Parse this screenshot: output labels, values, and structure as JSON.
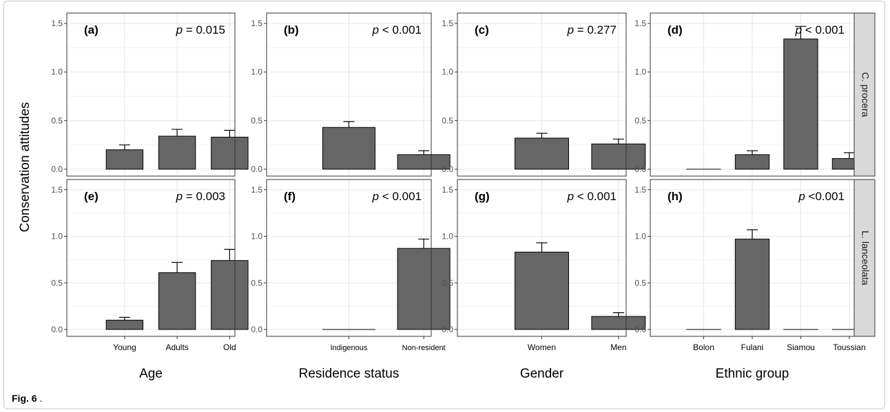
{
  "figure_caption": {
    "label": "Fig. 6",
    "text": "."
  },
  "y_axis_title": "Conservation attitudes",
  "columns": [
    {
      "x_title": "Age",
      "categories": [
        "Young",
        "Adults",
        "Old"
      ]
    },
    {
      "x_title": "Residence status",
      "categories": [
        "Indigenous",
        "Non-resident"
      ]
    },
    {
      "x_title": "Gender",
      "categories": [
        "Women",
        "Men"
      ]
    },
    {
      "x_title": "Ethnic group",
      "categories": [
        "Bolon",
        "Fulani",
        "Siamou",
        "Toussian"
      ]
    }
  ],
  "rows": [
    {
      "strip_label": "C. procera"
    },
    {
      "strip_label": "L. lanceolata"
    }
  ],
  "chart_data": [
    {
      "type": "bar",
      "panel": "(a)",
      "species": "C. procera",
      "xlabel": "Age",
      "ylabel": "Conservation attitudes",
      "categories": [
        "Young",
        "Adults",
        "Old"
      ],
      "values": [
        0.2,
        0.34,
        0.33
      ],
      "errors": [
        0.05,
        0.07,
        0.07
      ],
      "p_value": "= 0.015",
      "ylim": [
        0,
        1.55
      ],
      "yticks": [
        0.0,
        0.5,
        1.0,
        1.5
      ],
      "grid": true
    },
    {
      "type": "bar",
      "panel": "(b)",
      "species": "C. procera",
      "xlabel": "Residence status",
      "categories": [
        "Indigenous",
        "Non-resident"
      ],
      "values": [
        0.43,
        0.15
      ],
      "errors": [
        0.06,
        0.04
      ],
      "p_value": "< 0.001",
      "ylim": [
        0,
        1.55
      ],
      "yticks": [
        0.0,
        0.5,
        1.0,
        1.5
      ],
      "grid": true
    },
    {
      "type": "bar",
      "panel": "(c)",
      "species": "C. procera",
      "xlabel": "Gender",
      "categories": [
        "Women",
        "Men"
      ],
      "values": [
        0.32,
        0.26
      ],
      "errors": [
        0.05,
        0.05
      ],
      "p_value": "= 0.277",
      "ylim": [
        0,
        1.55
      ],
      "yticks": [
        0.0,
        0.5,
        1.0,
        1.5
      ],
      "grid": true
    },
    {
      "type": "bar",
      "panel": "(d)",
      "species": "C. procera",
      "xlabel": "Ethnic group",
      "categories": [
        "Bolon",
        "Fulani",
        "Siamou",
        "Toussian"
      ],
      "values": [
        0.0,
        0.15,
        1.34,
        0.11
      ],
      "errors": [
        0.0,
        0.04,
        0.13,
        0.06
      ],
      "p_value": "< 0.001",
      "ylim": [
        0,
        1.55
      ],
      "yticks": [
        0.0,
        0.5,
        1.0,
        1.5
      ],
      "grid": true
    },
    {
      "type": "bar",
      "panel": "(e)",
      "species": "L. lanceolata",
      "xlabel": "Age",
      "categories": [
        "Young",
        "Adults",
        "Old"
      ],
      "values": [
        0.1,
        0.61,
        0.74
      ],
      "errors": [
        0.03,
        0.11,
        0.12
      ],
      "p_value": "= 0.003",
      "ylim": [
        0,
        1.55
      ],
      "yticks": [
        0.0,
        0.5,
        1.0,
        1.5
      ],
      "grid": true
    },
    {
      "type": "bar",
      "panel": "(f)",
      "species": "L. lanceolata",
      "xlabel": "Residence status",
      "categories": [
        "Indigenous",
        "Non-resident"
      ],
      "values": [
        0.0,
        0.87
      ],
      "errors": [
        0.0,
        0.1
      ],
      "p_value": "< 0.001",
      "ylim": [
        0,
        1.55
      ],
      "yticks": [
        0.0,
        0.5,
        1.0,
        1.5
      ],
      "grid": true
    },
    {
      "type": "bar",
      "panel": "(g)",
      "species": "L. lanceolata",
      "xlabel": "Gender",
      "categories": [
        "Women",
        "Men"
      ],
      "values": [
        0.83,
        0.14
      ],
      "errors": [
        0.1,
        0.04
      ],
      "p_value": "< 0.001",
      "ylim": [
        0,
        1.55
      ],
      "yticks": [
        0.0,
        0.5,
        1.0,
        1.5
      ],
      "grid": true
    },
    {
      "type": "bar",
      "panel": "(h)",
      "species": "L. lanceolata",
      "xlabel": "Ethnic group",
      "categories": [
        "Bolon",
        "Fulani",
        "Siamou",
        "Toussian"
      ],
      "values": [
        0.0,
        0.97,
        0.0,
        0.0
      ],
      "errors": [
        0.0,
        0.1,
        0.0,
        0.0
      ],
      "p_value": "<0.001",
      "ylim": [
        0,
        1.55
      ],
      "yticks": [
        0.0,
        0.5,
        1.0,
        1.5
      ],
      "grid": true
    }
  ],
  "colors": {
    "bar_fill": "#666666",
    "bar_stroke": "#000000",
    "grid": "#e6e6e6",
    "panel_border": "#333333",
    "strip_fill": "#d9d9d9",
    "text": "#000000",
    "tick_text": "#4d4d4d"
  }
}
